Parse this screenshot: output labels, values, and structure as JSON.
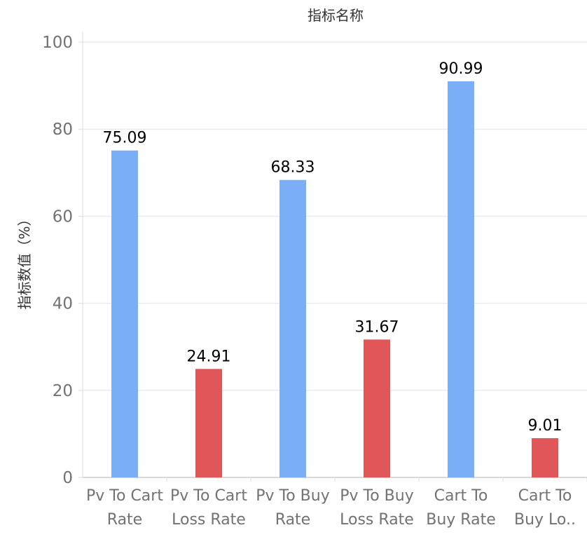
{
  "chart_data": {
    "type": "bar",
    "title": "指标名称",
    "xlabel": "",
    "ylabel": "指标数值（%）",
    "ylim": [
      0,
      100
    ],
    "yticks": [
      0,
      20,
      40,
      60,
      80,
      100
    ],
    "grid": true,
    "categories": [
      [
        "Pv To Cart",
        "Rate"
      ],
      [
        "Pv To Cart",
        "Loss Rate"
      ],
      [
        "Pv To Buy",
        "Rate"
      ],
      [
        "Pv To Buy",
        "Loss Rate"
      ],
      [
        "Cart To",
        "Buy Rate"
      ],
      [
        "Cart To",
        "Buy Lo.."
      ]
    ],
    "values": [
      75.09,
      24.91,
      68.33,
      31.67,
      90.99,
      9.01
    ],
    "value_labels": [
      "75.09",
      "24.91",
      "68.33",
      "31.67",
      "90.99",
      "9.01"
    ],
    "bar_colors": [
      "#7aaff7",
      "#e15759",
      "#7aaff7",
      "#e15759",
      "#7aaff7",
      "#e15759"
    ]
  },
  "colors": {
    "grid": "#ebebeb",
    "axis": "#dddddd",
    "tick_text": "#727272",
    "label_text": "#333333",
    "value_text": "#000000"
  }
}
